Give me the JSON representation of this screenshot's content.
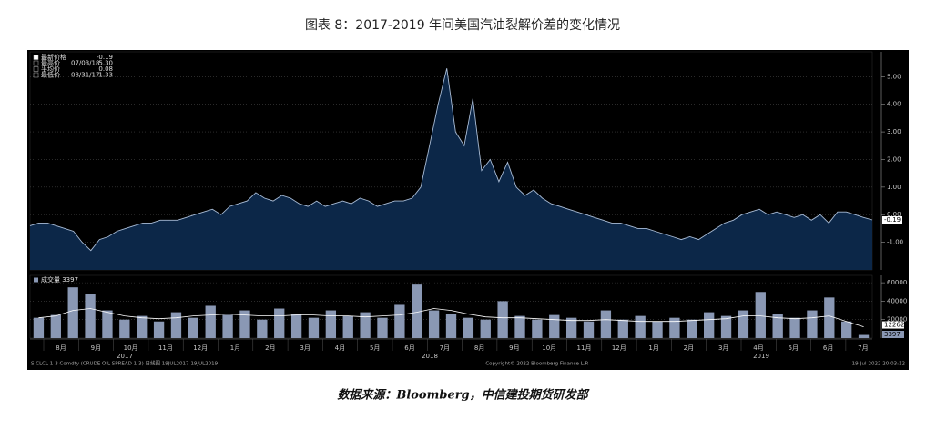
{
  "title": "图表 8：2017-2019 年间美国汽油裂解价差的变化情况",
  "source": "数据来源：Bloomberg，中信建投期货研发部",
  "footer_left": "S CLCL 1-3 Comdty (CRUDE OIL SPREAD 1-3) 日线图 19JUL2017-19JUL2019",
  "footer_center": "Copyright© 2022 Bloomberg Finance L.P.",
  "footer_right": "19-Jul-2022 20:03:12",
  "chart_data": [
    {
      "type": "area",
      "stats": [
        {
          "label": "最新价格",
          "value": "-0.19"
        },
        {
          "label": "最高价",
          "date": "07/03/18",
          "value": "5.30"
        },
        {
          "label": "平均价",
          "value": "0.08"
        },
        {
          "label": "最低价",
          "date": "08/31/17",
          "value": "-1.33"
        }
      ],
      "values": [
        -0.4,
        -0.3,
        -0.3,
        -0.4,
        -0.5,
        -0.6,
        -1.0,
        -1.3,
        -0.9,
        -0.8,
        -0.6,
        -0.5,
        -0.4,
        -0.3,
        -0.3,
        -0.2,
        -0.2,
        -0.2,
        -0.1,
        0.0,
        0.1,
        0.2,
        0.0,
        0.3,
        0.4,
        0.5,
        0.8,
        0.6,
        0.5,
        0.7,
        0.6,
        0.4,
        0.3,
        0.5,
        0.3,
        0.4,
        0.5,
        0.4,
        0.6,
        0.5,
        0.3,
        0.4,
        0.5,
        0.5,
        0.6,
        1.0,
        2.5,
        4.0,
        5.3,
        3.0,
        2.5,
        4.2,
        1.6,
        2.0,
        1.2,
        1.9,
        1.0,
        0.7,
        0.9,
        0.6,
        0.4,
        0.3,
        0.2,
        0.1,
        0.0,
        -0.1,
        -0.2,
        -0.3,
        -0.3,
        -0.4,
        -0.5,
        -0.5,
        -0.6,
        -0.7,
        -0.8,
        -0.9,
        -0.8,
        -0.9,
        -0.7,
        -0.5,
        -0.3,
        -0.2,
        0.0,
        0.1,
        0.2,
        0.0,
        0.1,
        0.0,
        -0.1,
        0.0,
        -0.2,
        0.0,
        -0.3,
        0.1,
        0.1,
        0.0,
        -0.1,
        -0.19
      ],
      "last_label": "-0.19",
      "color": "#0c2748",
      "line_color": "#a9bcd6",
      "ylim": [
        -2,
        5.9
      ],
      "yticks": [
        {
          "value": -1,
          "label": "-1.00"
        },
        {
          "value": 0,
          "label": "0.00"
        },
        {
          "value": 1,
          "label": "1.00"
        },
        {
          "value": 2,
          "label": "2.00"
        },
        {
          "value": 3,
          "label": "3.00"
        },
        {
          "value": 4,
          "label": "4.00"
        },
        {
          "value": 5,
          "label": "5.00"
        }
      ],
      "grid": true
    },
    {
      "type": "bar",
      "legend": "成交量 3397",
      "values": [
        22000,
        25000,
        55000,
        48000,
        30000,
        20000,
        24000,
        18000,
        28000,
        22000,
        35000,
        25000,
        30000,
        20000,
        32000,
        26000,
        22000,
        30000,
        24000,
        28000,
        22000,
        36000,
        58000,
        30000,
        26000,
        22000,
        20000,
        40000,
        24000,
        20000,
        25000,
        22000,
        18000,
        30000,
        20000,
        24000,
        18000,
        22000,
        20000,
        28000,
        24000,
        30000,
        50000,
        26000,
        22000,
        30000,
        44000,
        18000,
        3397
      ],
      "color": "#8a98b4",
      "ma": {
        "values": [
          22000,
          24000,
          30000,
          32000,
          28000,
          24000,
          22000,
          21000,
          22000,
          24000,
          25000,
          26000,
          25000,
          24000,
          24000,
          25000,
          25000,
          24000,
          24000,
          23000,
          24000,
          25000,
          28000,
          32000,
          30000,
          26000,
          23000,
          22000,
          22000,
          21000,
          20000,
          19000,
          19000,
          20000,
          19000,
          18000,
          18000,
          18000,
          19000,
          20000,
          21000,
          24000,
          24000,
          22000,
          21000,
          22000,
          24000,
          18000,
          12262
        ],
        "color": "#ffffff"
      },
      "last_labels": [
        "12262",
        "3397"
      ],
      "ylim": [
        0,
        68000
      ],
      "yticks": [
        20000,
        40000,
        60000
      ],
      "grid": true,
      "months": [
        "8月",
        "9月",
        "10月",
        "11月",
        "12月",
        "1月",
        "2月",
        "3月",
        "4月",
        "5月",
        "6月",
        "7月",
        "8月",
        "9月",
        "10月",
        "11月",
        "12月",
        "1月",
        "2月",
        "3月",
        "4月",
        "5月",
        "6月",
        "7月"
      ],
      "years": [
        "2017",
        "2018",
        "2019"
      ]
    }
  ]
}
